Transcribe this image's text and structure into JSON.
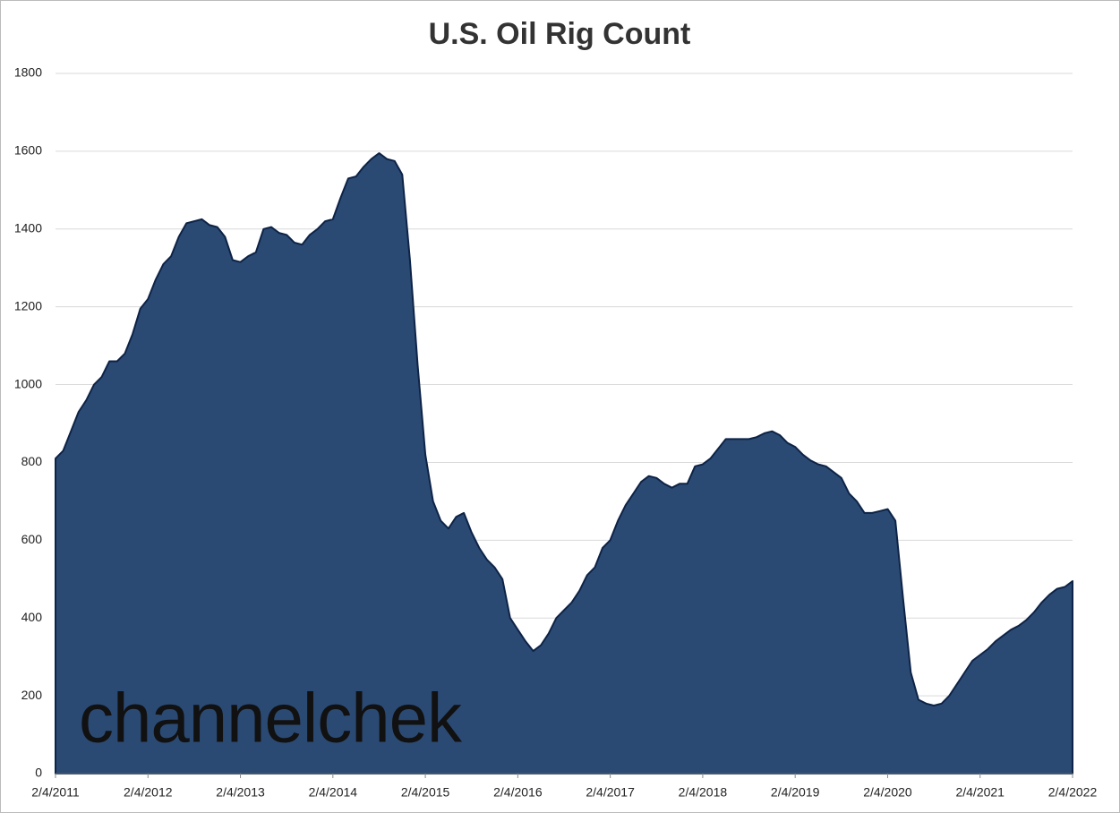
{
  "chart_data": {
    "type": "area",
    "title": "U.S. Oil Rig Count",
    "watermark": "channelchek",
    "categories": [
      "2/4/2011",
      null,
      null,
      null,
      null,
      null,
      null,
      null,
      null,
      null,
      null,
      null,
      "2/4/2012",
      null,
      null,
      null,
      null,
      null,
      null,
      null,
      null,
      null,
      null,
      null,
      "2/4/2013",
      null,
      null,
      null,
      null,
      null,
      null,
      null,
      null,
      null,
      null,
      null,
      "2/4/2014",
      null,
      null,
      null,
      null,
      null,
      null,
      null,
      null,
      null,
      null,
      null,
      "2/4/2015",
      null,
      null,
      null,
      null,
      null,
      null,
      null,
      null,
      null,
      null,
      null,
      "2/4/2016",
      null,
      null,
      null,
      null,
      null,
      null,
      null,
      null,
      null,
      null,
      null,
      "2/4/2017",
      null,
      null,
      null,
      null,
      null,
      null,
      null,
      null,
      null,
      null,
      null,
      "2/4/2018",
      null,
      null,
      null,
      null,
      null,
      null,
      null,
      null,
      null,
      null,
      null,
      "2/4/2019",
      null,
      null,
      null,
      null,
      null,
      null,
      null,
      null,
      null,
      null,
      null,
      "2/4/2020",
      null,
      null,
      null,
      null,
      null,
      null,
      null,
      null,
      null,
      null,
      null,
      "2/4/2021",
      null,
      null,
      null,
      null,
      null,
      null,
      null,
      null,
      null,
      null,
      null,
      "2/4/2022"
    ],
    "values": [
      810,
      830,
      880,
      930,
      960,
      1000,
      1020,
      1060,
      1060,
      1080,
      1130,
      1195,
      1220,
      1270,
      1310,
      1330,
      1380,
      1415,
      1420,
      1425,
      1410,
      1405,
      1380,
      1320,
      1315,
      1330,
      1340,
      1400,
      1405,
      1390,
      1385,
      1365,
      1360,
      1385,
      1400,
      1420,
      1425,
      1480,
      1530,
      1535,
      1560,
      1580,
      1595,
      1580,
      1575,
      1540,
      1320,
      1050,
      820,
      700,
      650,
      630,
      660,
      670,
      620,
      580,
      550,
      530,
      500,
      400,
      370,
      340,
      315,
      330,
      360,
      400,
      420,
      440,
      470,
      510,
      530,
      580,
      600,
      650,
      690,
      720,
      750,
      765,
      760,
      745,
      735,
      745,
      745,
      790,
      795,
      810,
      835,
      860,
      860,
      860,
      860,
      865,
      875,
      880,
      870,
      850,
      840,
      820,
      805,
      795,
      790,
      775,
      760,
      720,
      700,
      670,
      670,
      675,
      680,
      650,
      450,
      260,
      190,
      180,
      175,
      180,
      200,
      230,
      260,
      290,
      305,
      320,
      340,
      355,
      370,
      380,
      395,
      415,
      440,
      460,
      475,
      480,
      495
    ],
    "color": "#2b4a73",
    "line_color": "#0d2347",
    "ylim": [
      0,
      1800
    ],
    "yticks": [
      0,
      200,
      400,
      600,
      800,
      1000,
      1200,
      1400,
      1600,
      1800
    ],
    "grid": true
  }
}
